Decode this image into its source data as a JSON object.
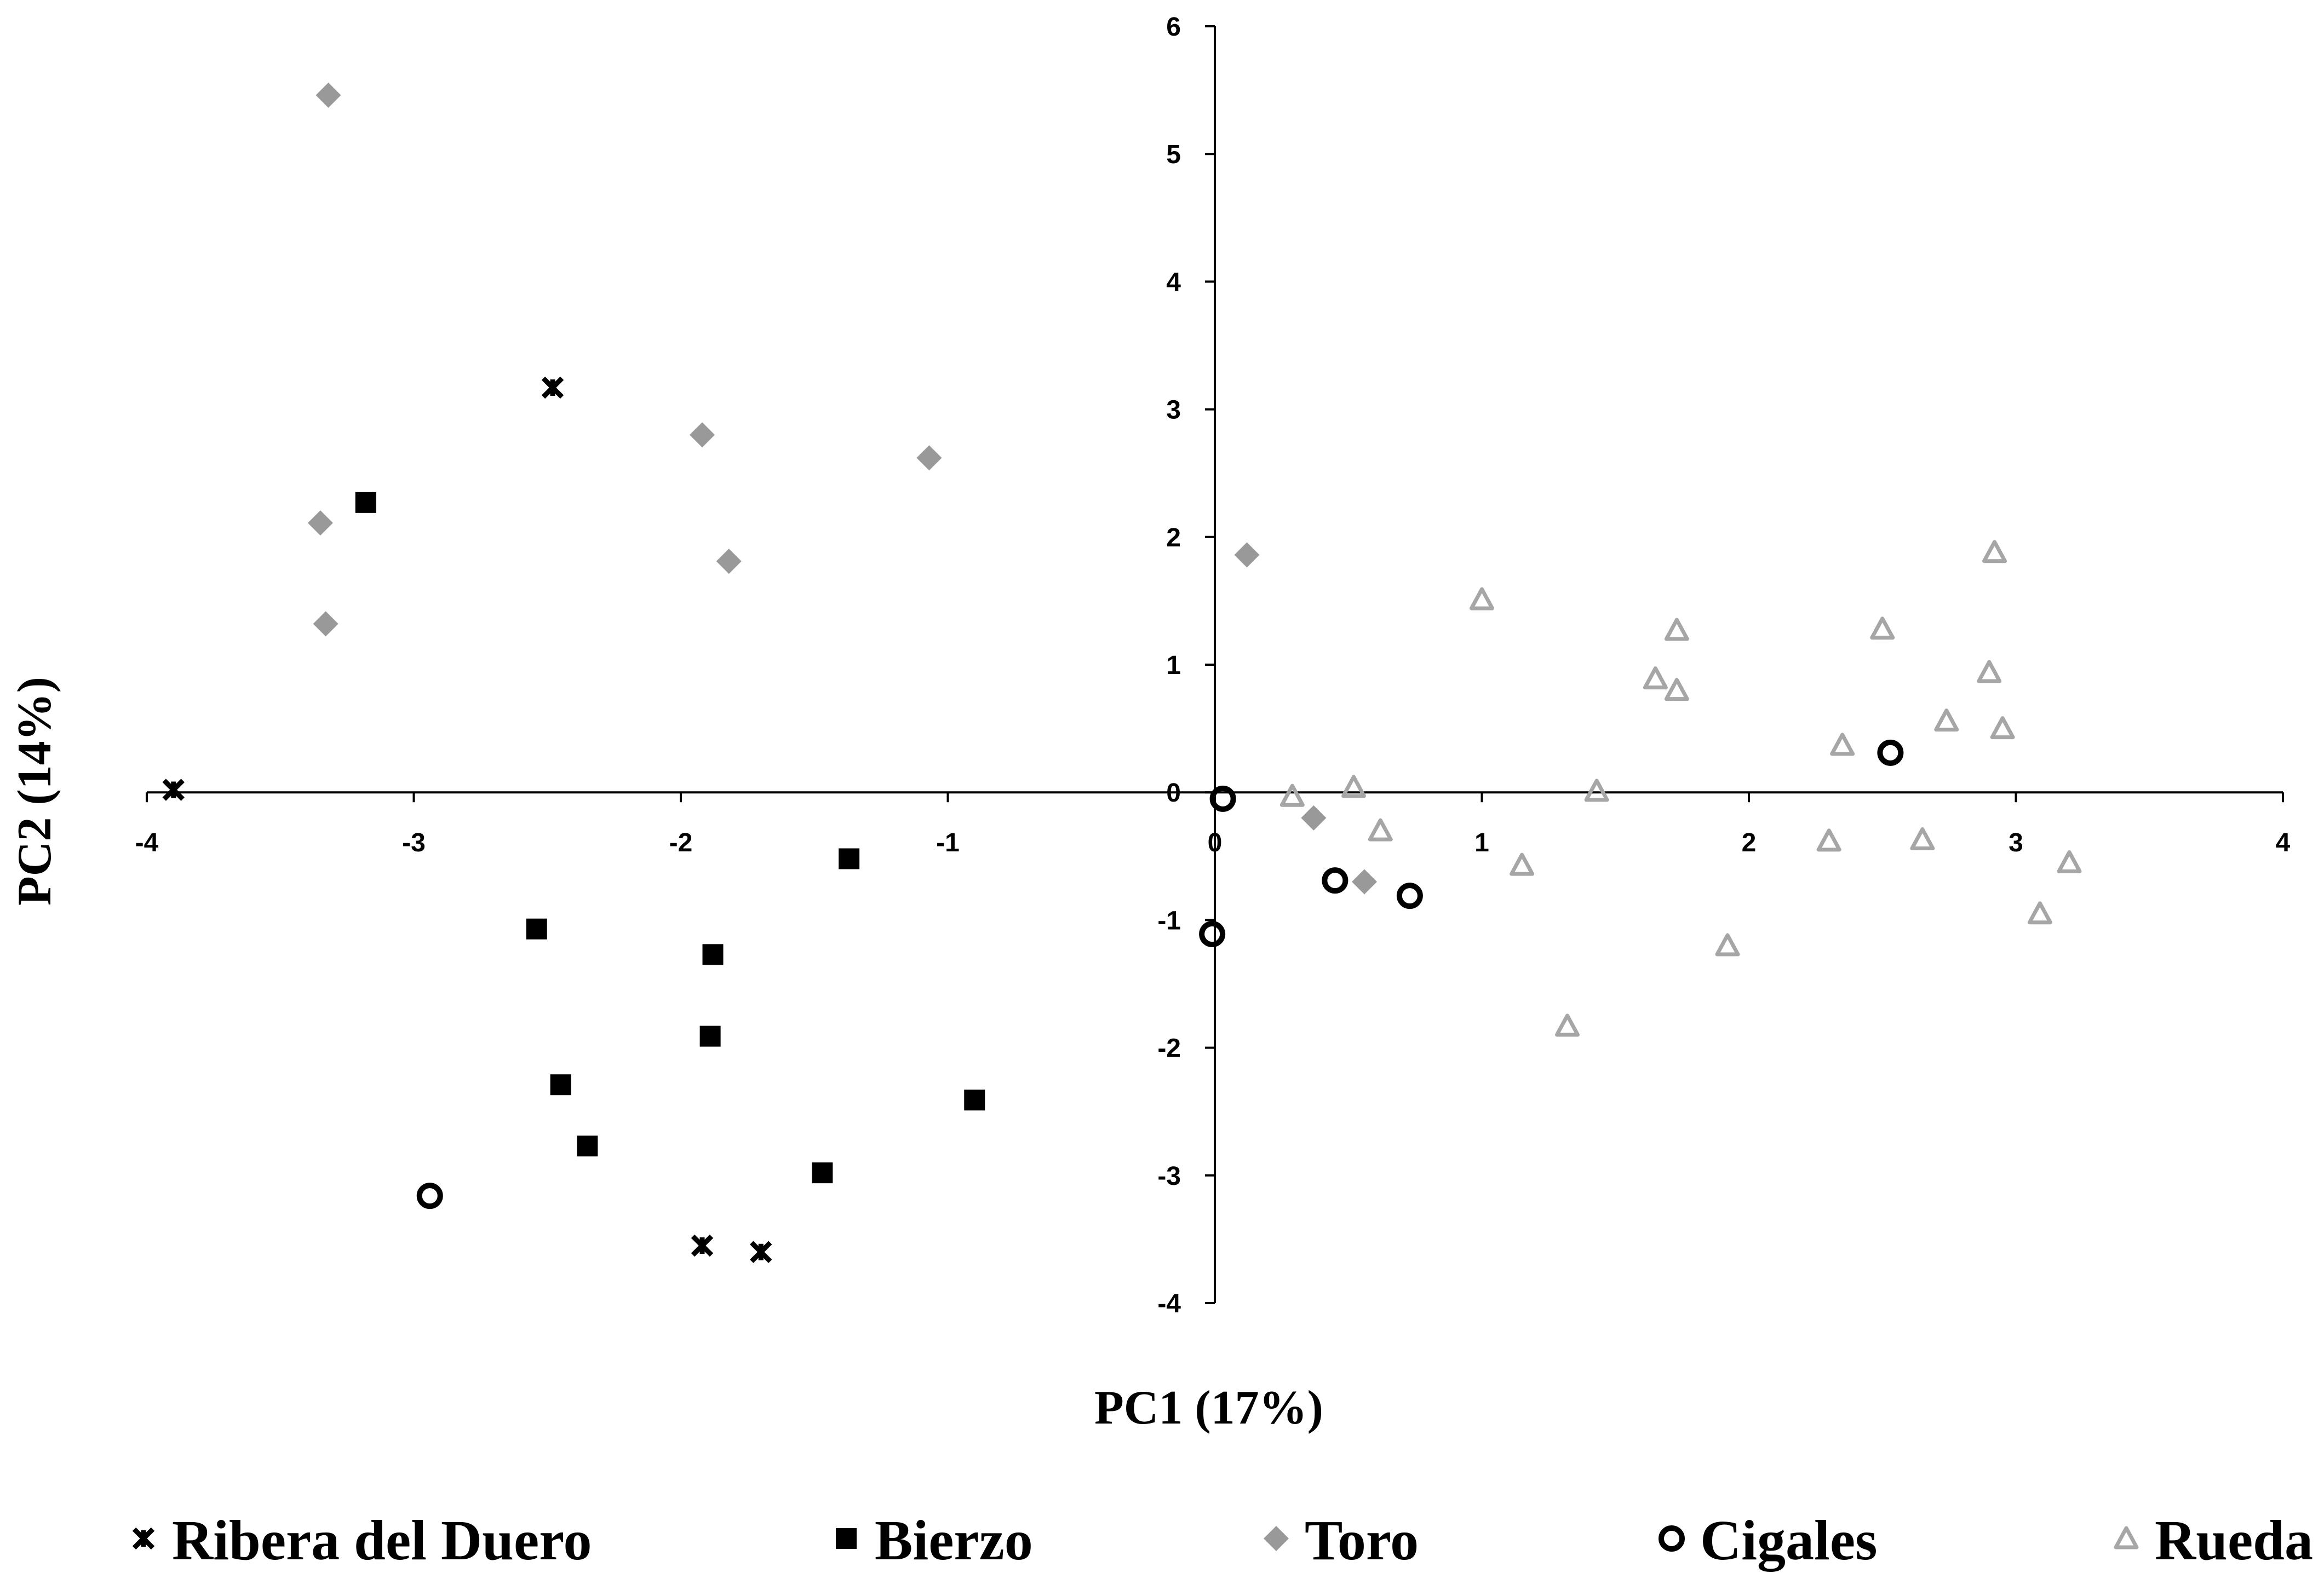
{
  "chart_data": {
    "type": "scatter",
    "title": "",
    "xlabel": "PC1 (17%)",
    "ylabel": "PC2 (14%)",
    "xlim": [
      -4,
      4
    ],
    "ylim": [
      -4,
      6
    ],
    "xticks": [
      -4,
      -3,
      -2,
      -1,
      0,
      1,
      2,
      3,
      4
    ],
    "yticks": [
      -4,
      -3,
      -2,
      -1,
      0,
      1,
      2,
      3,
      4,
      5,
      6
    ],
    "grid": false,
    "legend_position": "bottom",
    "series": [
      {
        "name": "Ribera del Duero",
        "marker": "asterisk",
        "color": "#000000",
        "points": [
          [
            -3.9,
            0.02
          ],
          [
            -2.48,
            3.17
          ],
          [
            -1.92,
            -3.55
          ],
          [
            -1.7,
            -3.6
          ]
        ]
      },
      {
        "name": "Bierzo",
        "marker": "square",
        "color": "#000000",
        "points": [
          [
            -3.18,
            2.27
          ],
          [
            -1.37,
            -0.52
          ],
          [
            -2.54,
            -1.07
          ],
          [
            -1.88,
            -1.27
          ],
          [
            -1.89,
            -1.91
          ],
          [
            -2.45,
            -2.29
          ],
          [
            -2.35,
            -2.77
          ],
          [
            -0.9,
            -2.41
          ],
          [
            -1.47,
            -2.98
          ]
        ]
      },
      {
        "name": "Toro",
        "marker": "diamond",
        "color": "#999999",
        "points": [
          [
            -3.32,
            5.46
          ],
          [
            -1.92,
            2.8
          ],
          [
            -1.07,
            2.62
          ],
          [
            -3.35,
            2.11
          ],
          [
            -1.82,
            1.81
          ],
          [
            -3.33,
            1.32
          ],
          [
            0.12,
            1.86
          ],
          [
            0.37,
            -0.2
          ],
          [
            0.56,
            -0.7
          ]
        ]
      },
      {
        "name": "Cigales",
        "marker": "circle",
        "color": "#000000",
        "points": [
          [
            0.03,
            -0.05
          ],
          [
            -0.01,
            -1.11
          ],
          [
            0.45,
            -0.69
          ],
          [
            0.73,
            -0.81
          ],
          [
            2.53,
            0.31
          ],
          [
            -2.94,
            -3.16
          ]
        ]
      },
      {
        "name": "Rueda",
        "marker": "triangle",
        "color": "#a6a6a6",
        "points": [
          [
            1.0,
            1.51
          ],
          [
            1.73,
            1.27
          ],
          [
            1.65,
            0.89
          ],
          [
            1.73,
            0.8
          ],
          [
            2.5,
            1.28
          ],
          [
            2.92,
            1.88
          ],
          [
            2.9,
            0.94
          ],
          [
            2.74,
            0.56
          ],
          [
            2.95,
            0.5
          ],
          [
            2.35,
            0.37
          ],
          [
            0.29,
            -0.03
          ],
          [
            0.52,
            0.04
          ],
          [
            0.62,
            -0.3
          ],
          [
            1.15,
            -0.57
          ],
          [
            1.43,
            0.01
          ],
          [
            2.3,
            -0.38
          ],
          [
            2.65,
            -0.37
          ],
          [
            3.2,
            -0.55
          ],
          [
            3.09,
            -0.95
          ],
          [
            1.92,
            -1.2
          ],
          [
            1.32,
            -1.83
          ]
        ]
      }
    ]
  }
}
